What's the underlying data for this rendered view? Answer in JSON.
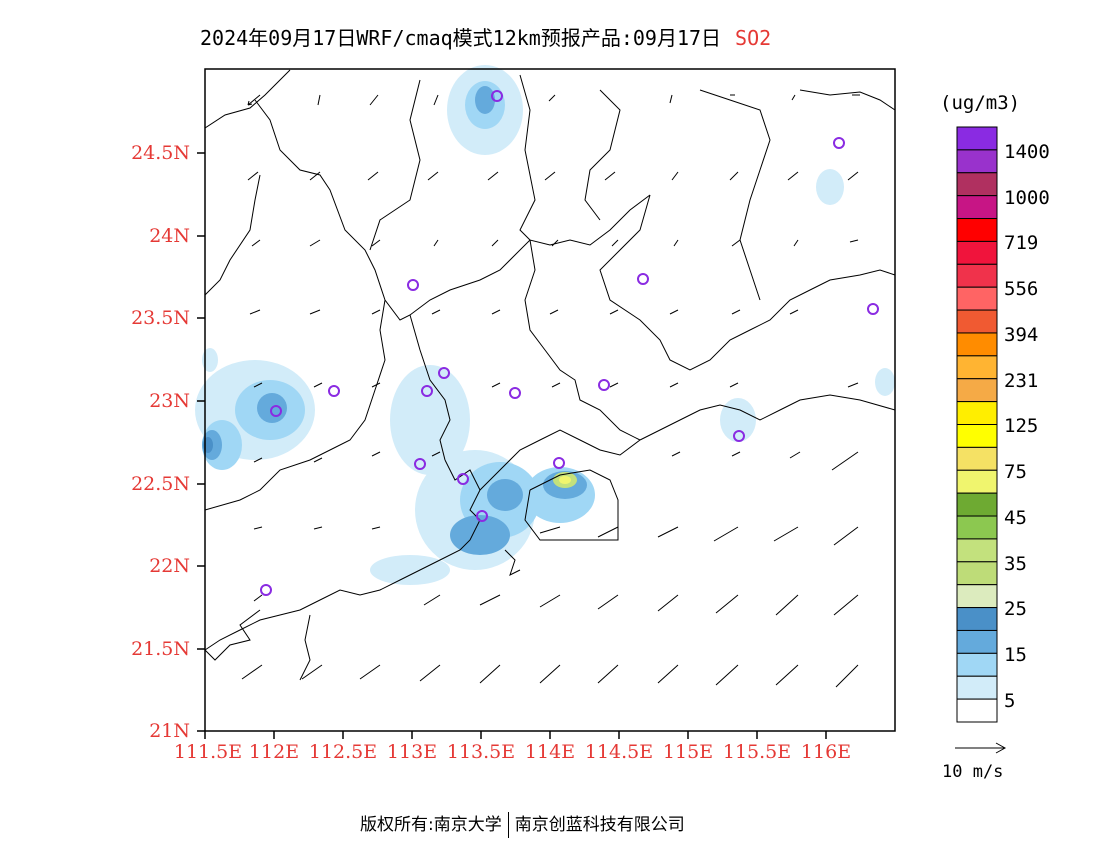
{
  "title": {
    "main": "2024年09月17日WRF/cmaq模式12km预报产品:09月17日",
    "species": "SO2"
  },
  "map": {
    "y_ticks": [
      "24.5N",
      "24N",
      "23.5N",
      "23N",
      "22.5N",
      "22N",
      "21.5N",
      "21N"
    ],
    "x_ticks": [
      "111.5E",
      "112E",
      "112.5E",
      "113E",
      "113.5E",
      "114E",
      "114.5E",
      "115E",
      "115.5E",
      "116E"
    ],
    "tick_color": "#e53935"
  },
  "colorbar": {
    "unit": "(ug/m3)",
    "colors": [
      "#8a2be2",
      "#9932cc",
      "#b03060",
      "#c71585",
      "#ff0000",
      "#f0143c",
      "#f0324b",
      "#ff6464",
      "#f05a32",
      "#ff8c00",
      "#ffb432",
      "#f5aa46",
      "#ffee00",
      "#ffff00",
      "#f5e164",
      "#f0f56e",
      "#6eaa32",
      "#8cc850",
      "#c3e17d",
      "#bedc78",
      "#dcebbe",
      "#4a90c8",
      "#64aadc",
      "#a0d7f5",
      "#d2ecf9",
      "#ffffff"
    ],
    "labels": [
      "1400",
      "1000",
      "719",
      "556",
      "394",
      "231",
      "125",
      "75",
      "45",
      "35",
      "25",
      "15",
      "5"
    ]
  },
  "wind": {
    "reference_label": "10 m/s"
  },
  "footer": {
    "left": "版权所有:南京大学",
    "right": "南京创蓝科技有限公司"
  }
}
